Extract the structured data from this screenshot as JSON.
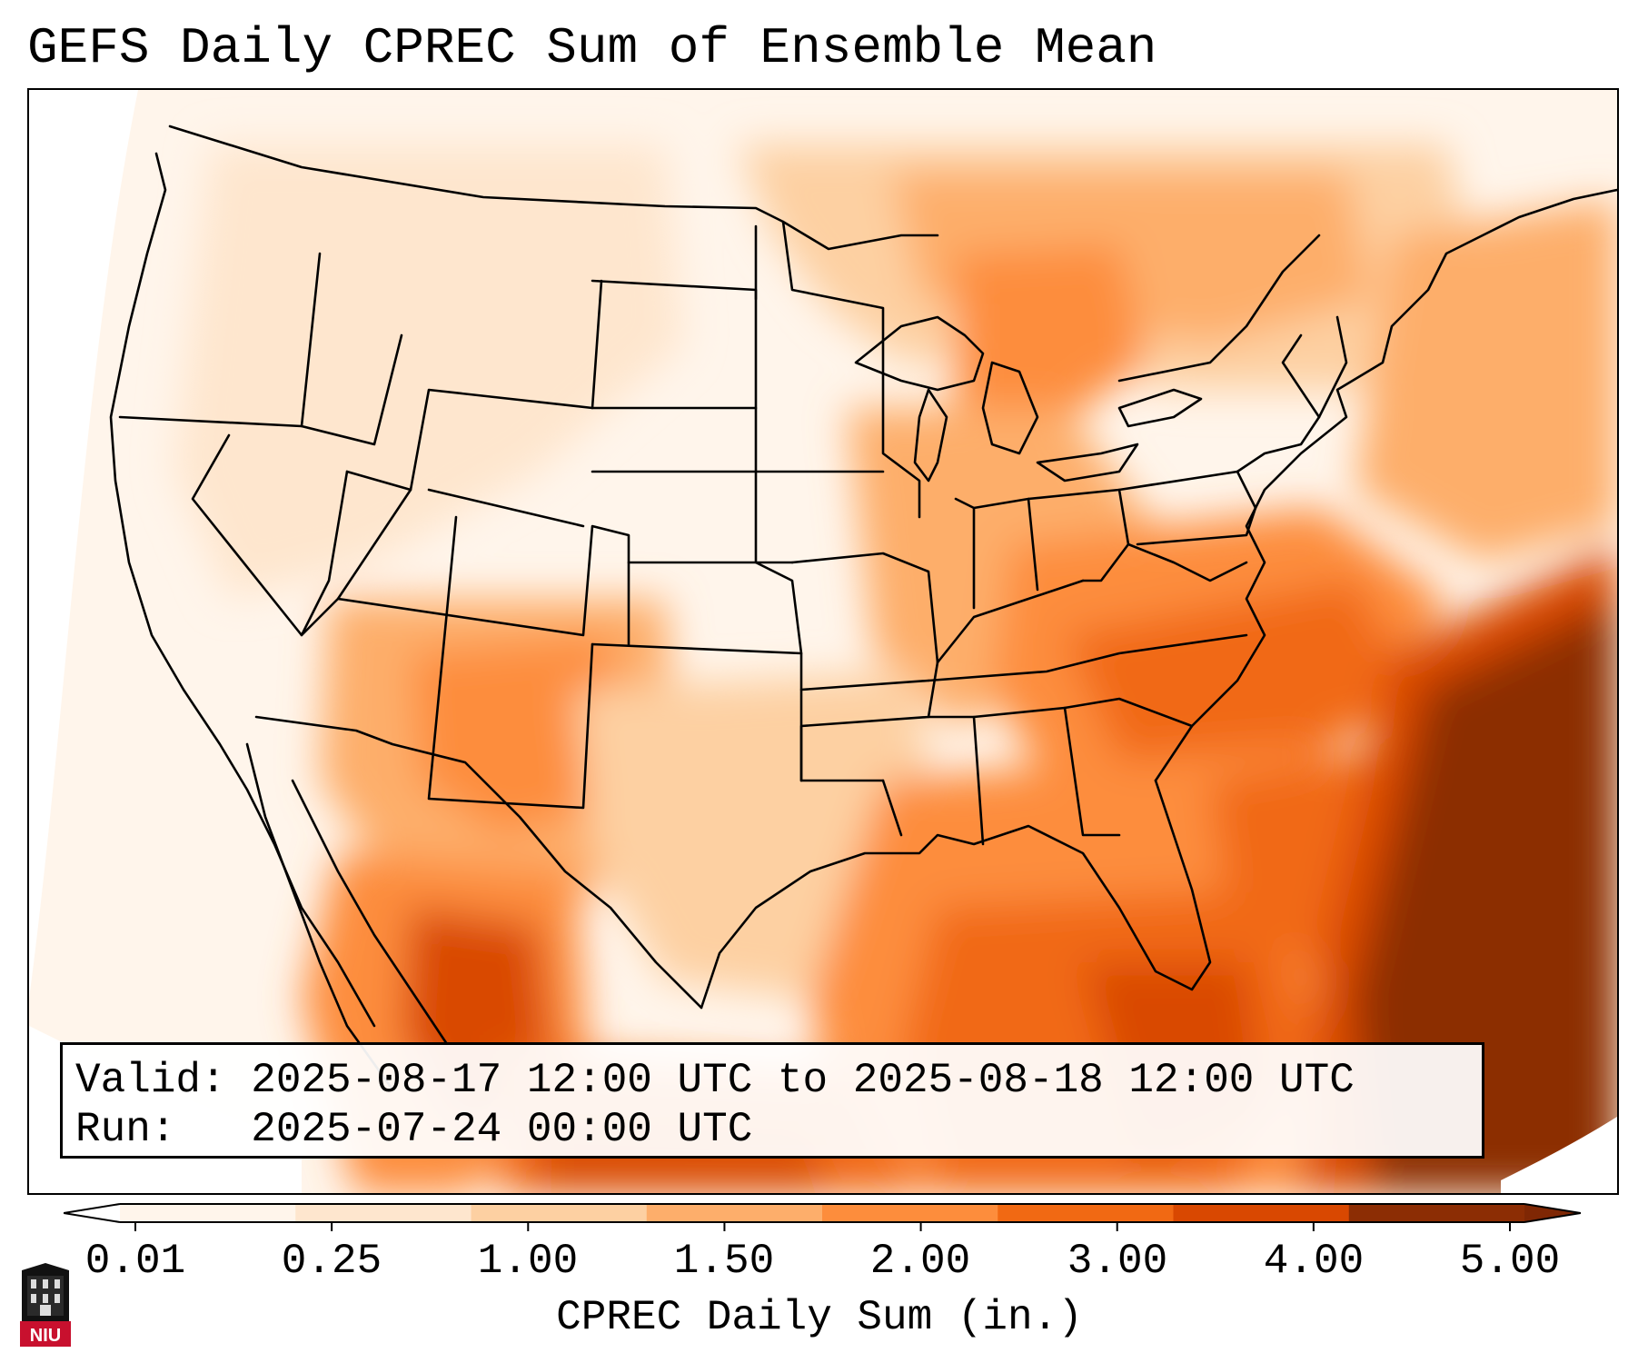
{
  "title": "GEFS Daily CPREC Sum of Ensemble Mean",
  "info": {
    "valid": "Valid: 2025-08-17 12:00 UTC to 2025-08-18 12:00 UTC",
    "run": "Run:   2025-07-24 00:00 UTC"
  },
  "colorbar": {
    "label": "CPREC Daily Sum (in.)",
    "ticks": [
      "0.01",
      "0.25",
      "1.00",
      "1.50",
      "2.00",
      "3.00",
      "4.00",
      "5.00"
    ],
    "colors": [
      "#fff5eb",
      "#fee6ce",
      "#fdd0a2",
      "#fdae6b",
      "#fd8d3c",
      "#f16913",
      "#d94801",
      "#8c2d04"
    ],
    "under_color": "#ffffff",
    "over_color": "#7f2704"
  },
  "logo": {
    "text": "NIU"
  },
  "icons": [
    "niu-logo-icon"
  ]
}
